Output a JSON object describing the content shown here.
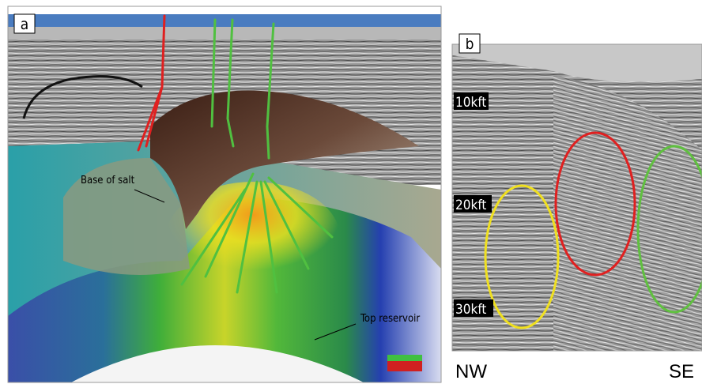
{
  "panels": [
    {
      "label": "a",
      "annotations": [
        "Base of salt",
        "Top reservoir"
      ]
    },
    {
      "label": "b",
      "depth_labels": [
        "10kft",
        "20kft",
        "30kft"
      ],
      "direction_labels": [
        "NW",
        "SE"
      ]
    }
  ]
}
